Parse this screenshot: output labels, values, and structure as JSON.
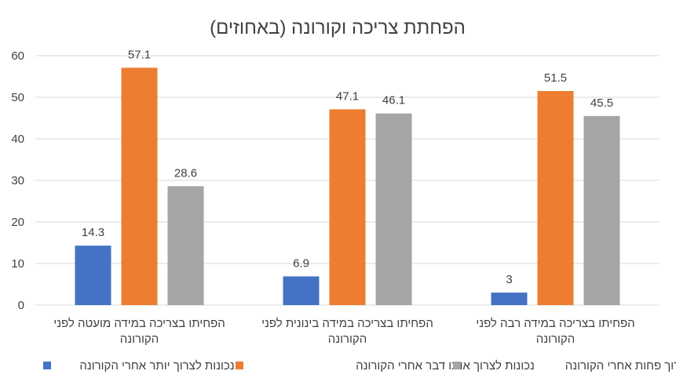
{
  "chart_data": {
    "type": "bar",
    "title": "הפחתת צריכה וקורונה (באחוזים)",
    "xlabel": "",
    "ylabel": "",
    "ylim": [
      0,
      60
    ],
    "yticks": [
      0,
      10,
      20,
      30,
      40,
      50,
      60
    ],
    "grid": true,
    "legend_position": "bottom",
    "direction": "rtl",
    "categories": [
      [
        "הפחיתו בצריכה במידה רבה לפני",
        "הקורונה"
      ],
      [
        "הפחיתו בצריכה במידה בינונית לפני",
        "הקורונה"
      ],
      [
        "הפחיתו בצריכה במידה מועטה לפני",
        "הקורונה"
      ]
    ],
    "series": [
      {
        "name": "נכונות לצרוך יותר אחרי הקורונה",
        "color": "#4472c4",
        "values": [
          3,
          6.9,
          14.3
        ]
      },
      {
        "name": "נכונות לצרוך אותו דבר אחרי הקורונה",
        "color": "#ed7d31",
        "values": [
          51.5,
          47.1,
          57.1
        ]
      },
      {
        "name": "נכונות לצרוך פחות אחרי הקורונה",
        "color": "#a5a5a5",
        "values": [
          45.5,
          46.1,
          28.6
        ]
      }
    ]
  }
}
